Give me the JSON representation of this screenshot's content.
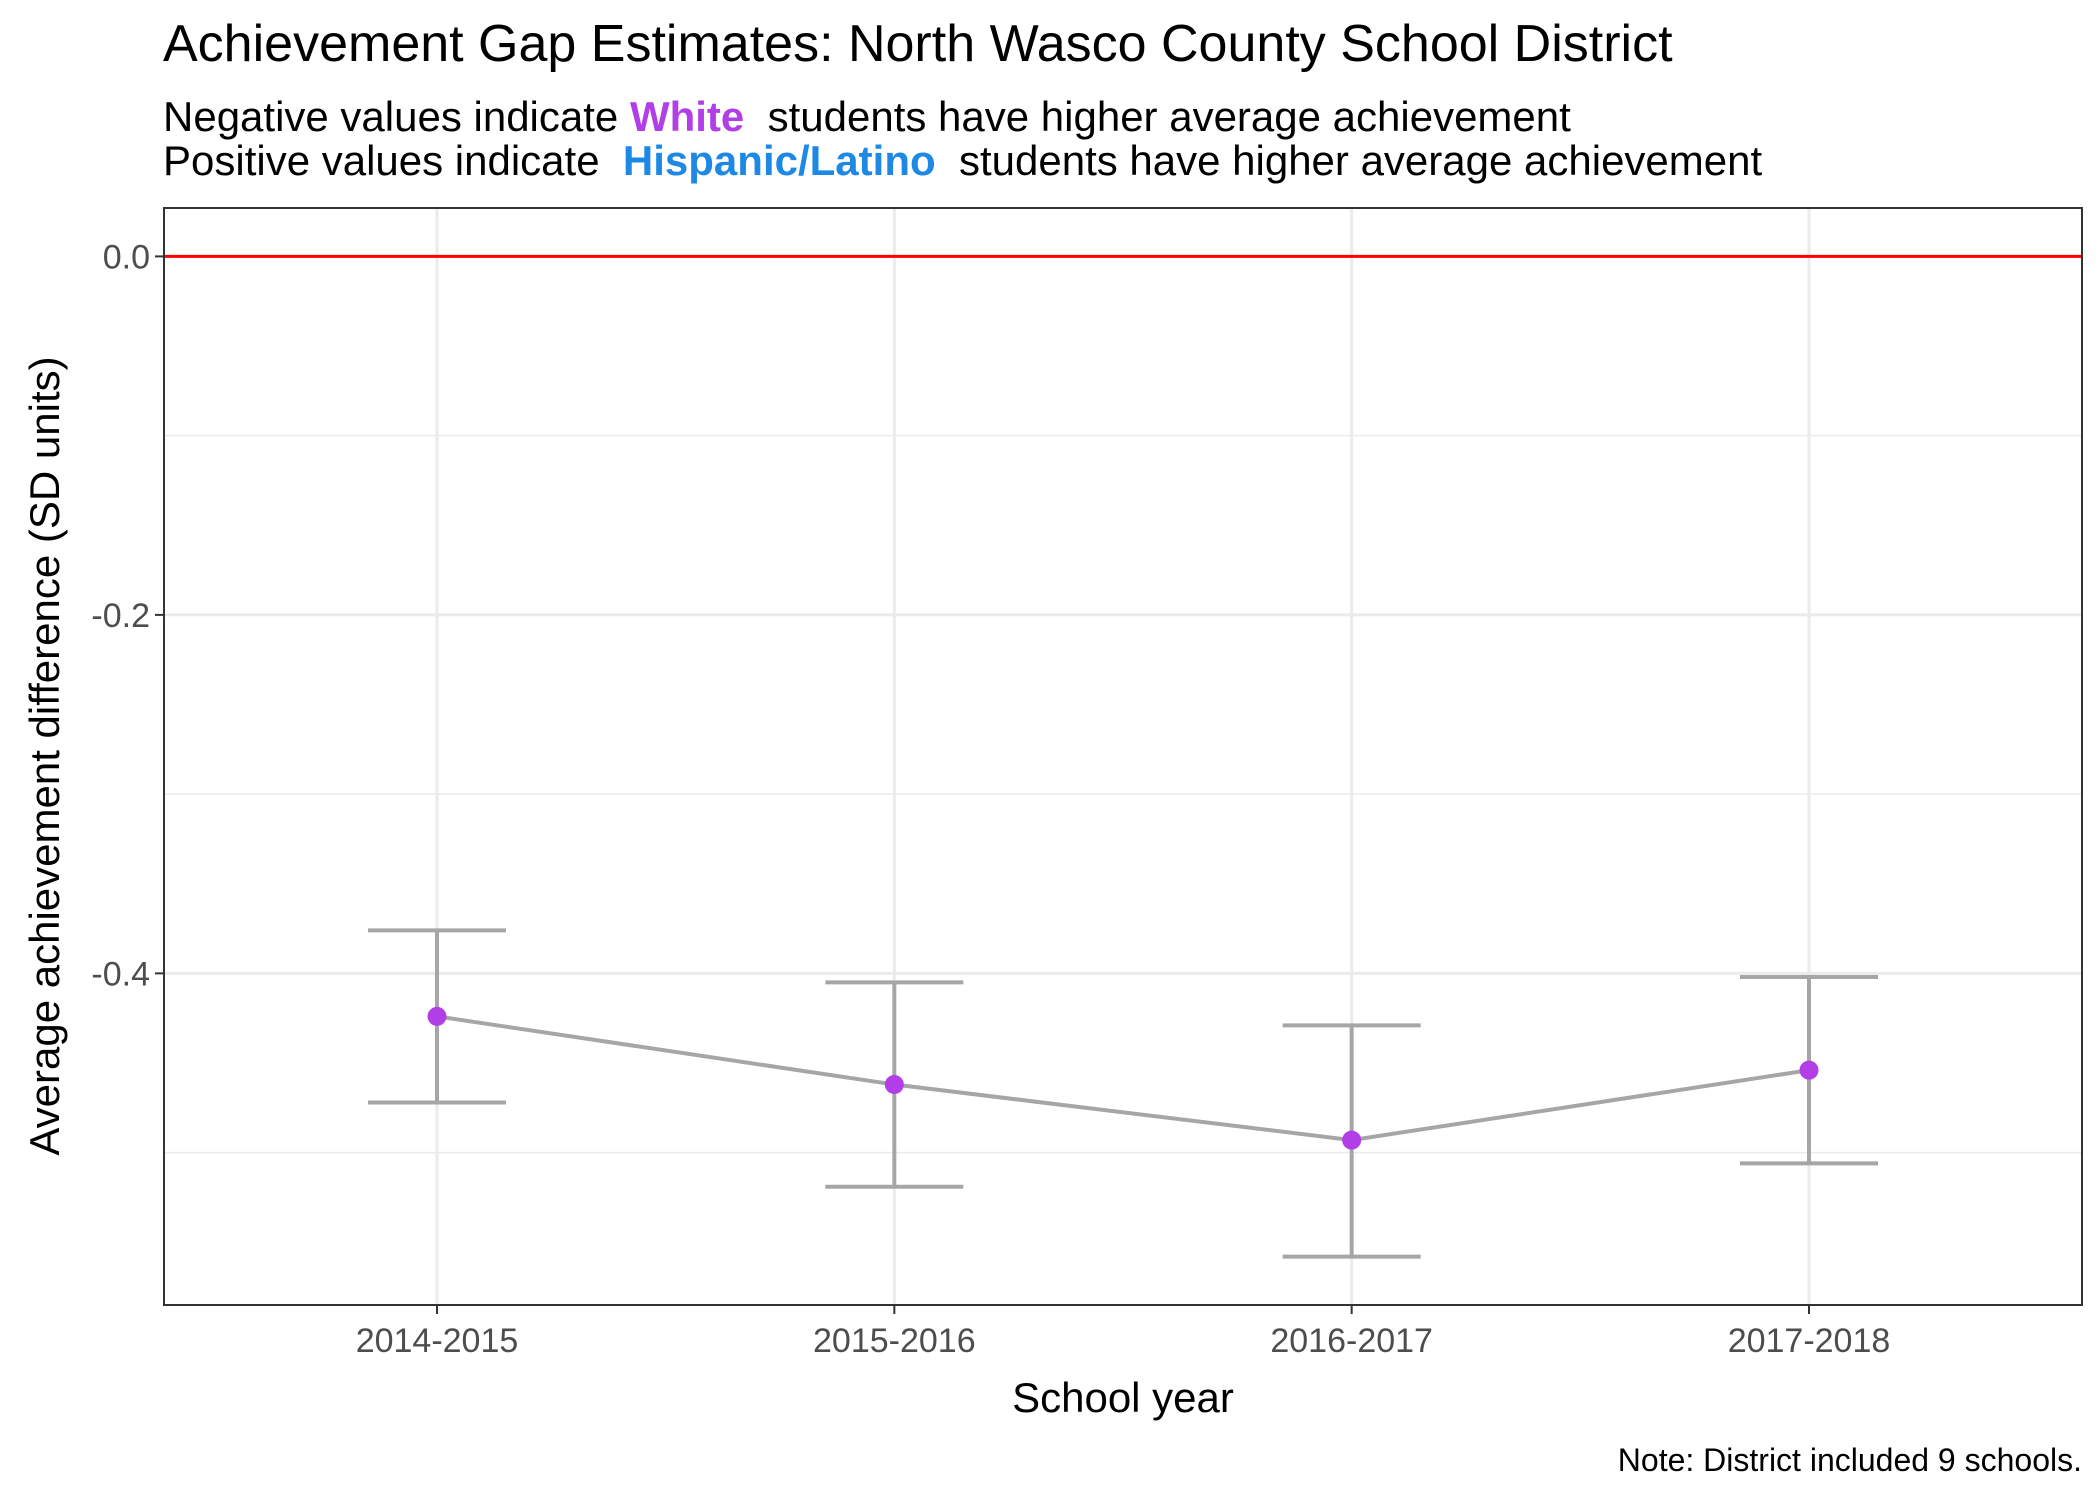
{
  "chart_data": {
    "type": "line",
    "title": "Achievement Gap Estimates: North Wasco County School District",
    "subtitle": {
      "line1": {
        "before": "Negative values indicate",
        "highlight": "White",
        "after": "students have higher average achievement"
      },
      "line2": {
        "before": "Positive values indicate",
        "highlight": "Hispanic/Latino",
        "after": "students have higher average achievement"
      }
    },
    "xlabel": "School year",
    "ylabel": "Average achievement difference (SD units)",
    "caption": "Note: District included 9 schools.",
    "categories": [
      "2014-2015",
      "2015-2016",
      "2016-2017",
      "2017-2018"
    ],
    "series": [
      {
        "values": [
          -0.424,
          -0.462,
          -0.493,
          -0.454
        ],
        "lower": [
          -0.472,
          -0.519,
          -0.558,
          -0.506
        ],
        "upper": [
          -0.376,
          -0.405,
          -0.429,
          -0.402
        ]
      }
    ],
    "yticks": [
      "0.0",
      "-0.2",
      "-0.4"
    ],
    "ytick_values": [
      0.0,
      -0.2,
      -0.4
    ],
    "ylim": [
      -0.585,
      0.027
    ],
    "reference_line": 0.0,
    "grid": true,
    "colors": {
      "point": "#b23ee8",
      "line": "#a6a6a6",
      "reference": "#ff0000",
      "white_highlight": "#b23ee8",
      "hispanic_highlight": "#1e88e5",
      "grid": "#ebebeb",
      "panel_border": "#333333"
    }
  }
}
